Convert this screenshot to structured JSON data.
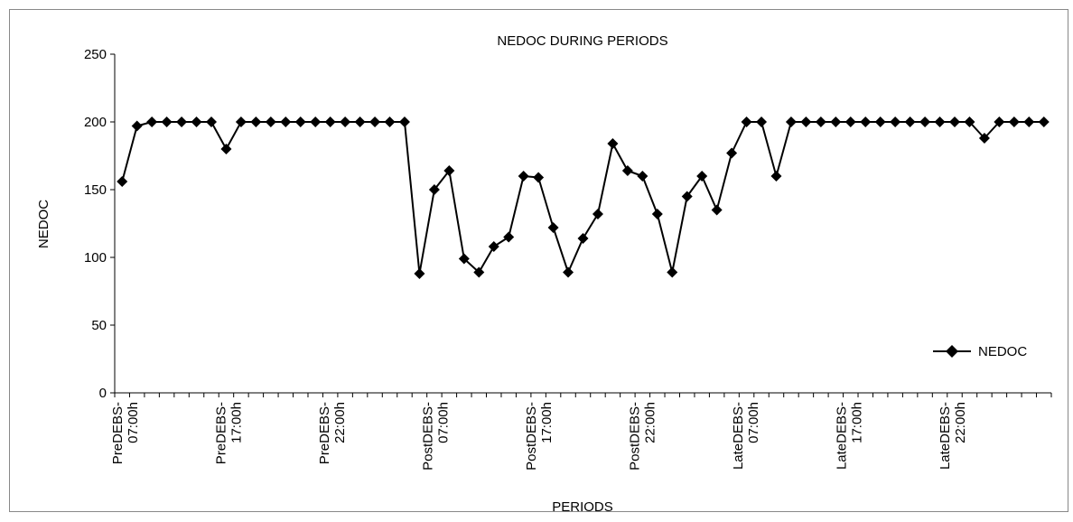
{
  "chart_data": {
    "type": "line",
    "title": "NEDOC DURING PERIODS",
    "xlabel": "PERIODS",
    "ylabel": "NEDOC",
    "ylim": [
      0,
      250
    ],
    "yticks": [
      0,
      50,
      100,
      150,
      200,
      250
    ],
    "grid": false,
    "legend": "right",
    "x_tick_labels": [
      {
        "line1": "PreDEBS-",
        "line2": "07:00h"
      },
      {
        "line1": "PreDEBS-",
        "line2": "17:00h"
      },
      {
        "line1": "PreDEBS-",
        "line2": "22:00h"
      },
      {
        "line1": "PostDEBS-",
        "line2": "07:00h"
      },
      {
        "line1": "PostDEBS-",
        "line2": "17:00h"
      },
      {
        "line1": "PostDEBS-",
        "line2": "22:00h"
      },
      {
        "line1": "LateDEBS-",
        "line2": "07:00h"
      },
      {
        "line1": "LateDEBS-",
        "line2": "17:00h"
      },
      {
        "line1": "LateDEBS-",
        "line2": "22:00h"
      }
    ],
    "series": [
      {
        "name": "NEDOC",
        "color": "#000000",
        "marker": "diamond",
        "values": [
          156,
          197,
          200,
          200,
          200,
          200,
          200,
          180,
          200,
          200,
          200,
          200,
          200,
          200,
          200,
          200,
          200,
          200,
          200,
          200,
          88,
          150,
          164,
          99,
          89,
          108,
          115,
          160,
          159,
          122,
          89,
          114,
          132,
          184,
          164,
          160,
          132,
          89,
          145,
          160,
          135,
          177,
          200,
          200,
          160,
          200,
          200,
          200,
          200,
          200,
          200,
          200,
          200,
          200,
          200,
          200,
          200,
          200,
          188,
          200,
          200,
          200,
          200
        ]
      }
    ]
  }
}
